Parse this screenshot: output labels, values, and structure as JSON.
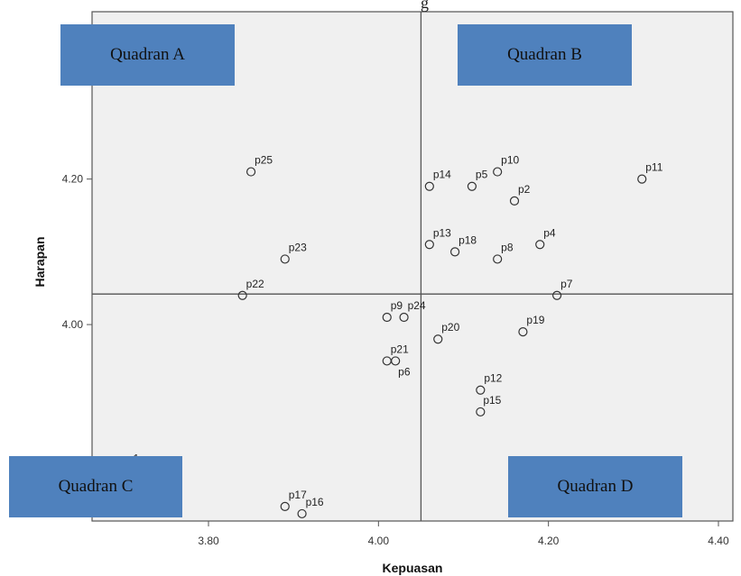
{
  "page": {
    "title_fragment": "g"
  },
  "quadrants": {
    "a": "Quadran A",
    "b": "Quadran B",
    "c": "Quadran C",
    "d": "Quadran D"
  },
  "chart_data": {
    "type": "scatter",
    "title": "",
    "xlabel": "Kepuasan",
    "ylabel": "Harapan",
    "xlim": [
      3.663,
      4.417
    ],
    "ylim": [
      3.73,
      4.43
    ],
    "x_ticks": [
      3.8,
      4.0,
      4.2,
      4.4
    ],
    "x_tick_labels": [
      "3.80",
      "4.00",
      "4.20",
      "4.40"
    ],
    "y_ticks": [
      3.8,
      4.0,
      4.2
    ],
    "y_tick_labels": [
      "3.80",
      "4.00",
      "4.20"
    ],
    "x_divider": 4.05,
    "y_divider": 4.042,
    "grid": false,
    "point_color": "#333333",
    "plot_background": "#f0f0f0",
    "quadrant_box_color": "#4f81bd",
    "points": [
      {
        "label": "p1",
        "x": 3.7,
        "y": 3.8
      },
      {
        "label": "p2",
        "x": 4.16,
        "y": 4.17
      },
      {
        "label": "p4",
        "x": 4.19,
        "y": 4.11
      },
      {
        "label": "p5",
        "x": 4.11,
        "y": 4.19
      },
      {
        "label": "p6",
        "x": 4.02,
        "y": 3.95
      },
      {
        "label": "p7",
        "x": 4.21,
        "y": 4.04
      },
      {
        "label": "p8",
        "x": 4.14,
        "y": 4.09
      },
      {
        "label": "p9",
        "x": 4.01,
        "y": 4.01
      },
      {
        "label": "p10",
        "x": 4.14,
        "y": 4.21
      },
      {
        "label": "p11",
        "x": 4.31,
        "y": 4.2
      },
      {
        "label": "p12",
        "x": 4.12,
        "y": 3.91
      },
      {
        "label": "p13",
        "x": 4.06,
        "y": 4.11
      },
      {
        "label": "p14",
        "x": 4.06,
        "y": 4.19
      },
      {
        "label": "p15",
        "x": 4.12,
        "y": 3.88
      },
      {
        "label": "p16",
        "x": 3.91,
        "y": 3.74
      },
      {
        "label": "p17",
        "x": 3.89,
        "y": 3.75
      },
      {
        "label": "p18",
        "x": 4.09,
        "y": 4.1
      },
      {
        "label": "p19",
        "x": 4.17,
        "y": 3.99
      },
      {
        "label": "p20",
        "x": 4.07,
        "y": 3.98
      },
      {
        "label": "p21",
        "x": 4.01,
        "y": 3.95
      },
      {
        "label": "p22",
        "x": 3.84,
        "y": 4.04
      },
      {
        "label": "p23",
        "x": 3.89,
        "y": 4.09
      },
      {
        "label": "p24",
        "x": 4.03,
        "y": 4.01
      },
      {
        "label": "p25",
        "x": 3.85,
        "y": 4.21
      }
    ]
  }
}
